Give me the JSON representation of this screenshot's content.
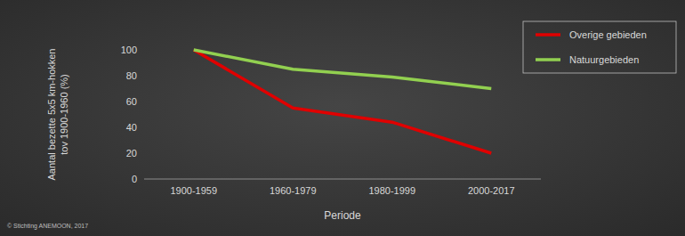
{
  "chart_data": {
    "type": "line",
    "ylabel": [
      "Aantal bezette 5x5 km-hokken",
      "tov 1900-1960 (%)"
    ],
    "xlabel": "Periode",
    "source": "© Stichting ANEMOON, 2017",
    "categories": [
      "1900-1959",
      "1960-1979",
      "1980-1999",
      "2000-2017"
    ],
    "series": [
      {
        "name": "Overige gebieden",
        "color": "#e00000",
        "values": [
          100,
          55,
          44,
          20
        ]
      },
      {
        "name": "Natuurgebieden",
        "color": "#92d050",
        "values": [
          100,
          85,
          79,
          70
        ]
      }
    ],
    "ylim": [
      0,
      100
    ],
    "yticks": [
      0,
      20,
      40,
      60,
      80,
      100
    ],
    "grid": false,
    "legend": "right"
  }
}
